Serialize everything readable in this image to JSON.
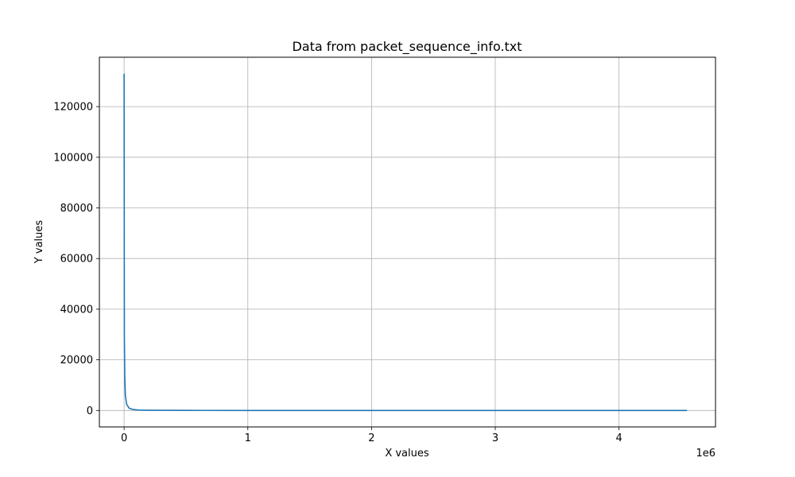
{
  "chart_data": {
    "type": "line",
    "title": "Data from packet_sequence_info.txt",
    "xlabel": "X values",
    "ylabel": "Y values",
    "x_offset_label": "1e6",
    "xlim": [
      -200000,
      4780000
    ],
    "ylim": [
      -6500,
      139500
    ],
    "xticks": [
      0,
      1000000,
      2000000,
      3000000,
      4000000
    ],
    "xtick_labels": [
      "0",
      "1",
      "2",
      "3",
      "4"
    ],
    "yticks": [
      0,
      20000,
      40000,
      60000,
      80000,
      100000,
      120000
    ],
    "ytick_labels": [
      "0",
      "20000",
      "40000",
      "60000",
      "80000",
      "100000",
      "120000"
    ],
    "grid": true,
    "series": [
      {
        "color": "#1f77b4",
        "x": [
          0,
          2000,
          5000,
          10000,
          20000,
          40000,
          70000,
          120000,
          200000,
          500000,
          1000000,
          2000000,
          3000000,
          4000000,
          4550000
        ],
        "y": [
          133000,
          30000,
          14000,
          6000,
          2500,
          900,
          400,
          150,
          60,
          20,
          10,
          5,
          3,
          2,
          1
        ]
      }
    ]
  }
}
